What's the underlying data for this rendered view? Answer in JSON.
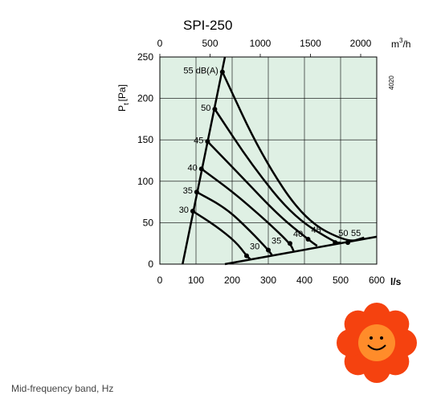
{
  "chart_data": {
    "type": "line",
    "title": "SPI-250",
    "code": "4020",
    "ylabel": "P",
    "ylabel_sub": "t",
    "ylabel_unit": "[Pa]",
    "x_bottom_unit": "l/s",
    "x_top_unit_base": "m",
    "x_top_unit_sup": "3",
    "x_top_unit_rest": "/h",
    "xlim": [
      0,
      600
    ],
    "ylim": [
      0,
      250
    ],
    "xticks": [
      0,
      100,
      200,
      300,
      400,
      500,
      600
    ],
    "yticks": [
      0,
      50,
      100,
      150,
      200,
      250
    ],
    "top_ticks_m3h": [
      0,
      500,
      1000,
      1500,
      2000
    ],
    "grid": true,
    "background": "#dff0e4",
    "line_color": "#000000",
    "noise_labels_left": [
      "55 dB(A)",
      "50",
      "45",
      "40",
      "35",
      "30"
    ],
    "noise_labels_right": [
      "30",
      "35",
      "40",
      "45",
      "50",
      "55"
    ],
    "max_line": [
      [
        63,
        0
      ],
      [
        180,
        250
      ]
    ],
    "system_line": [
      [
        180,
        0
      ],
      [
        600,
        33
      ]
    ],
    "series": [
      {
        "label": "55",
        "values": [
          [
            173,
            232
          ],
          [
            280,
            132
          ],
          [
            400,
            53
          ],
          [
            520,
            26
          ],
          [
            565,
            32
          ]
        ]
      },
      {
        "label": "50",
        "values": [
          [
            152,
            187
          ],
          [
            255,
            119
          ],
          [
            370,
            57
          ],
          [
            485,
            26
          ],
          [
            500,
            26
          ]
        ]
      },
      {
        "label": "45",
        "values": [
          [
            132,
            148
          ],
          [
            225,
            106
          ],
          [
            330,
            58
          ],
          [
            410,
            30
          ],
          [
            435,
            22
          ]
        ]
      },
      {
        "label": "40",
        "values": [
          [
            115,
            115
          ],
          [
            205,
            86
          ],
          [
            295,
            52
          ],
          [
            360,
            25
          ],
          [
            370,
            16
          ]
        ]
      },
      {
        "label": "35",
        "values": [
          [
            102,
            87
          ],
          [
            185,
            67
          ],
          [
            250,
            40
          ],
          [
            300,
            17
          ],
          [
            310,
            11
          ]
        ]
      },
      {
        "label": "30",
        "values": [
          [
            91,
            64
          ],
          [
            155,
            46
          ],
          [
            210,
            27
          ],
          [
            240,
            10
          ],
          [
            250,
            6
          ]
        ]
      }
    ]
  },
  "footer": {
    "note": "Mid-frequency band, Hz"
  },
  "colors": {
    "flower_petal": "#f5420f",
    "flower_center": "#ff8c2a"
  },
  "icons": {
    "flower": "smiley-flower-icon"
  }
}
